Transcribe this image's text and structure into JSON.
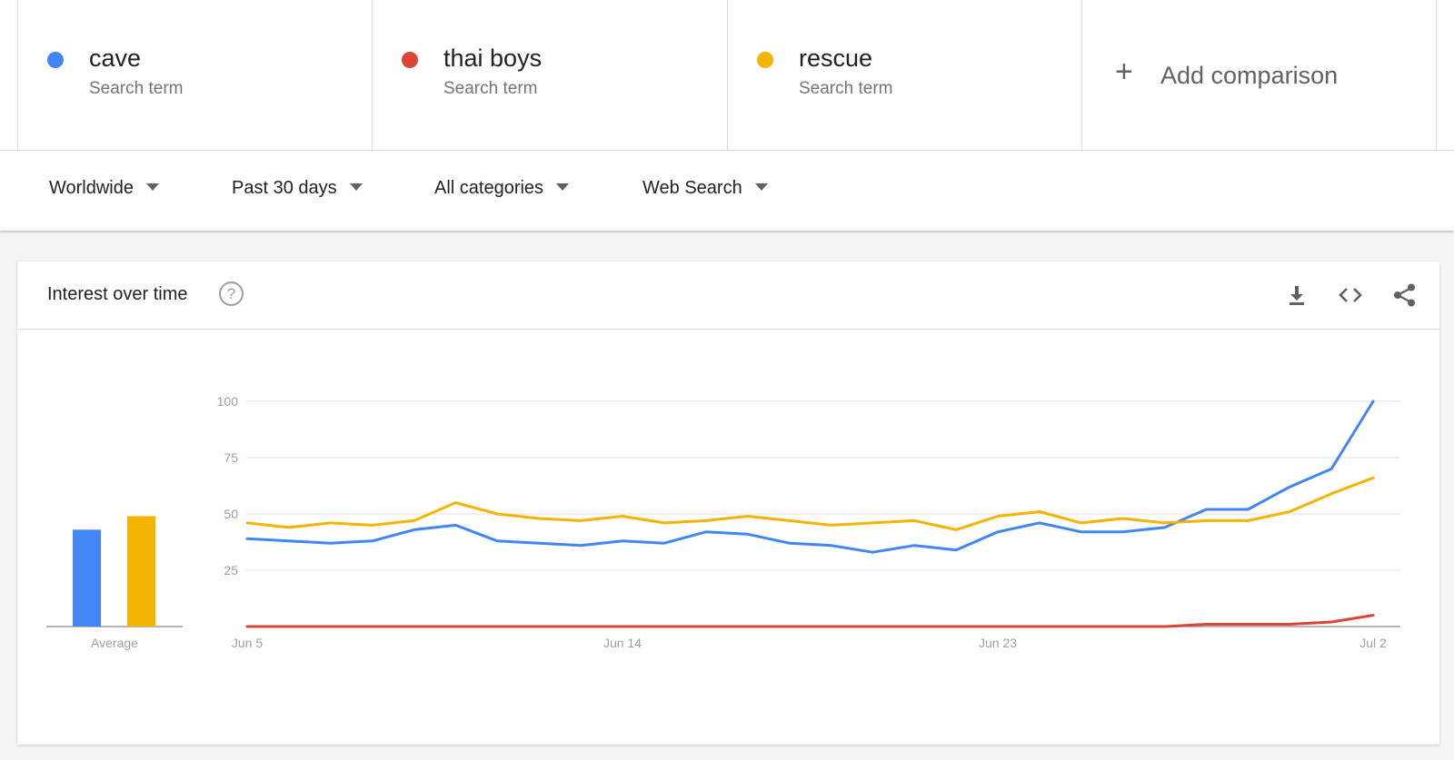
{
  "terms": [
    {
      "name": "cave",
      "sub": "Search term",
      "color": "#4285f4"
    },
    {
      "name": "thai boys",
      "sub": "Search term",
      "color": "#db4437"
    },
    {
      "name": "rescue",
      "sub": "Search term",
      "color": "#f4b400"
    }
  ],
  "add_comparison": {
    "icon": "plus-icon",
    "label": "Add comparison"
  },
  "filters": [
    {
      "label": "Worldwide"
    },
    {
      "label": "Past 30 days"
    },
    {
      "label": "All categories"
    },
    {
      "label": "Web Search"
    }
  ],
  "card": {
    "title": "Interest over time",
    "help_icon": "?",
    "tools": [
      "download-icon",
      "embed-icon",
      "share-icon"
    ]
  },
  "chart_data": {
    "type": "line",
    "ylim": [
      0,
      100
    ],
    "yticks": [
      25,
      50,
      75,
      100
    ],
    "x": [
      "Jun 5",
      "Jun 6",
      "Jun 7",
      "Jun 8",
      "Jun 9",
      "Jun 10",
      "Jun 11",
      "Jun 12",
      "Jun 13",
      "Jun 14",
      "Jun 15",
      "Jun 16",
      "Jun 17",
      "Jun 18",
      "Jun 19",
      "Jun 20",
      "Jun 21",
      "Jun 22",
      "Jun 23",
      "Jun 24",
      "Jun 25",
      "Jun 26",
      "Jun 27",
      "Jun 28",
      "Jun 29",
      "Jun 30",
      "Jul 1",
      "Jul 2"
    ],
    "xticks": [
      "Jun 5",
      "Jun 14",
      "Jun 23",
      "Jul 2"
    ],
    "grid": true,
    "series": [
      {
        "name": "cave",
        "color": "#4285f4",
        "values": [
          39,
          38,
          37,
          38,
          43,
          45,
          38,
          37,
          36,
          38,
          37,
          42,
          41,
          37,
          36,
          33,
          36,
          34,
          42,
          46,
          42,
          42,
          44,
          52,
          52,
          62,
          70,
          100
        ]
      },
      {
        "name": "thai boys",
        "color": "#db4437",
        "values": [
          0,
          0,
          0,
          0,
          0,
          0,
          0,
          0,
          0,
          0,
          0,
          0,
          0,
          0,
          0,
          0,
          0,
          0,
          0,
          0,
          0,
          0,
          0,
          1,
          1,
          1,
          2,
          5
        ]
      },
      {
        "name": "rescue",
        "color": "#f4b400",
        "values": [
          46,
          44,
          46,
          45,
          47,
          55,
          50,
          48,
          47,
          49,
          46,
          47,
          49,
          47,
          45,
          46,
          47,
          43,
          49,
          51,
          46,
          48,
          46,
          47,
          47,
          51,
          59,
          66
        ]
      }
    ],
    "average": {
      "label": "Average",
      "bars": [
        {
          "term": "cave",
          "value": 43,
          "color": "#4285f4"
        },
        {
          "term": "rescue",
          "value": 49,
          "color": "#f4b400"
        }
      ]
    }
  }
}
